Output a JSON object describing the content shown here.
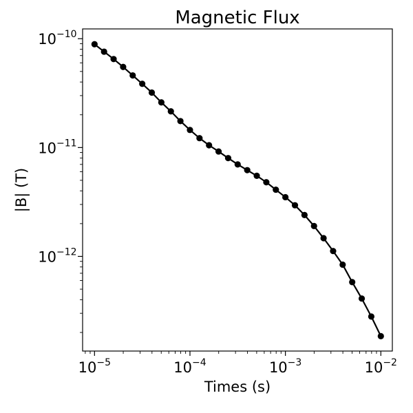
{
  "chart_data": {
    "type": "line",
    "title": "Magnetic Flux",
    "xlabel": "Times (s)",
    "ylabel": "|B| (T)",
    "xscale": "log",
    "yscale": "log",
    "xlim": [
      7.5e-06,
      0.0132
    ],
    "ylim": [
      1.35e-13,
      1.23e-10
    ],
    "grid": false,
    "line_color": "#000000",
    "marker": "circle",
    "x_ticks": [
      {
        "value": 1e-05,
        "label": "10",
        "exp": "−5"
      },
      {
        "value": 0.0001,
        "label": "10",
        "exp": "−4"
      },
      {
        "value": 0.001,
        "label": "10",
        "exp": "−3"
      },
      {
        "value": 0.01,
        "label": "10",
        "exp": "−2"
      }
    ],
    "y_ticks": [
      {
        "value": 1e-10,
        "label": "10",
        "exp": "−10"
      },
      {
        "value": 1e-11,
        "label": "10",
        "exp": "−11"
      },
      {
        "value": 1e-12,
        "label": "10",
        "exp": "−12"
      }
    ],
    "series": [
      {
        "x": [
          1e-05,
          1.259e-05,
          1.585e-05,
          1.995e-05,
          2.512e-05,
          3.162e-05,
          3.981e-05,
          5.012e-05,
          6.31e-05,
          7.943e-05,
          0.0001,
          0.0001259,
          0.0001585,
          0.0001995,
          0.0002512,
          0.0003162,
          0.0003981,
          0.0005012,
          0.000631,
          0.0007943,
          0.001,
          0.001259,
          0.001585,
          0.001995,
          0.002512,
          0.003162,
          0.003981,
          0.005012,
          0.00631,
          0.007943,
          0.01
        ],
        "y": [
          8.9e-11,
          7.6e-11,
          6.5e-11,
          5.5e-11,
          4.6e-11,
          3.85e-11,
          3.2e-11,
          2.6e-11,
          2.15e-11,
          1.75e-11,
          1.45e-11,
          1.22e-11,
          1.05e-11,
          9.2e-12,
          8e-12,
          7e-12,
          6.2e-12,
          5.5e-12,
          4.8e-12,
          4.1e-12,
          3.5e-12,
          2.95e-12,
          2.4e-12,
          1.9e-12,
          1.47e-12,
          1.12e-12,
          8.4e-13,
          5.8e-13,
          4.1e-13,
          2.8e-13,
          1.85e-13
        ]
      }
    ]
  }
}
